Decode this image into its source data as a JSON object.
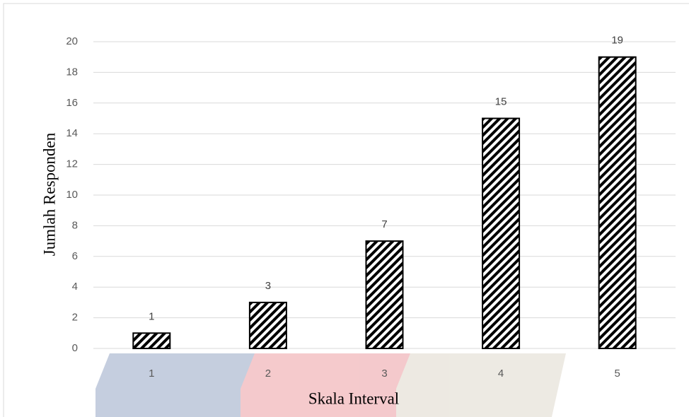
{
  "chart_data": {
    "type": "bar",
    "x_label": "Skala Interval",
    "y_label": "Jumlah Responden",
    "categories": [
      "1",
      "2",
      "3",
      "4",
      "5"
    ],
    "values": [
      1,
      3,
      7,
      15,
      19
    ],
    "color": "#000000",
    "ylim": [
      0,
      20
    ],
    "yticks": [
      0,
      2,
      4,
      6,
      8,
      10,
      12,
      14,
      16,
      18,
      20
    ],
    "grid": true
  }
}
